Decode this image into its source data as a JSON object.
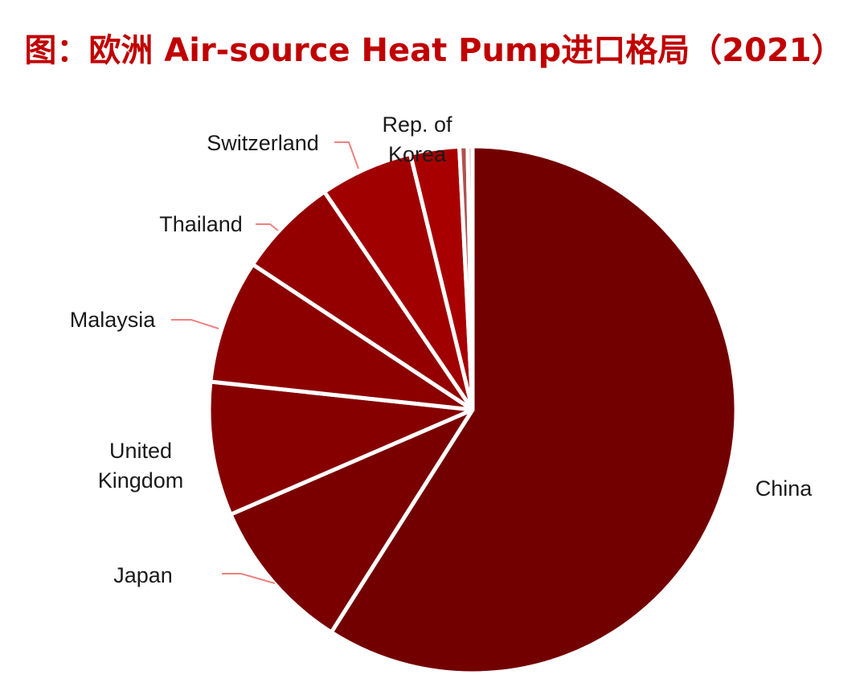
{
  "title": "图：欧洲 Air-source Heat Pump进口格局（2021）",
  "chart_data": {
    "type": "pie",
    "title": "图：欧洲 Air-source Heat Pump进口格局（2021）",
    "unit": "share of imports (%)",
    "start": "12 o'clock",
    "direction": "clockwise",
    "slices": [
      {
        "label": "China",
        "value": 59.0,
        "color": "#730000"
      },
      {
        "label": "Japan",
        "value": 9.5,
        "color": "#7a0000"
      },
      {
        "label": "United Kingdom",
        "value": 8.2,
        "color": "#860000"
      },
      {
        "label": "Malaysia",
        "value": 7.6,
        "color": "#8c0000"
      },
      {
        "label": "Thailand",
        "value": 6.2,
        "color": "#940000"
      },
      {
        "label": "Switzerland",
        "value": 5.7,
        "color": "#a00000"
      },
      {
        "label": "Rep. of Korea",
        "value": 3.0,
        "color": "#a80000"
      },
      {
        "label": "",
        "value": 0.5,
        "color": "#b05050"
      },
      {
        "label": "",
        "value": 0.3,
        "color": "#e6b0b0"
      }
    ],
    "legend": "none (outside labels with leader lines)"
  }
}
